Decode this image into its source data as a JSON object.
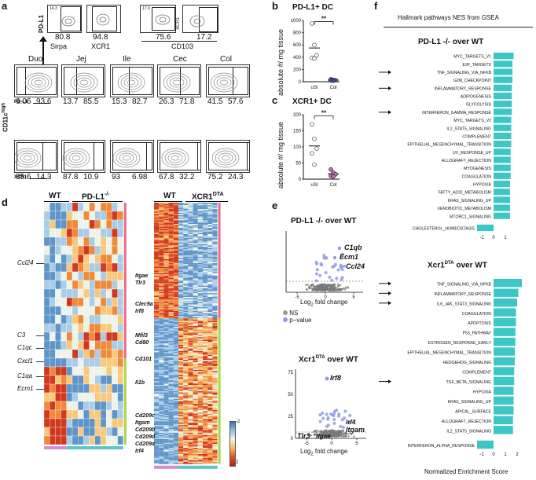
{
  "panel_labels": {
    "a": "a",
    "b": "b",
    "c": "c",
    "d": "d",
    "e": "e",
    "f": "f"
  },
  "panel_a": {
    "top_gates": [
      {
        "ylabel": "PD-L1",
        "xlabel": "Sirpa",
        "small": "14.3",
        "value": "80.8"
      },
      {
        "xlabel": "XCR1",
        "value": "94.8"
      },
      {
        "small": "17.9",
        "value": "75.6"
      },
      {
        "ylabel": "XCR1",
        "value": "17.2"
      }
    ],
    "cd103_label": "CD103",
    "cd11c_label": "CD11c",
    "cd11c_sup": "high",
    "pdl1_axis": "PD-L1",
    "xcr1_axis": "XCR1",
    "tissues": [
      "Duo",
      "Jej",
      "Ile",
      "Cec",
      "Col"
    ],
    "row1": [
      [
        "6.06",
        "93.6"
      ],
      [
        "13.7",
        "85.5"
      ],
      [
        "15.3",
        "82.7"
      ],
      [
        "26.3",
        "71.8"
      ],
      [
        "41.5",
        "57.6"
      ]
    ],
    "row2": [
      [
        "85.6",
        "14.3"
      ],
      [
        "87.8",
        "10.9"
      ],
      [
        "93",
        "6.98"
      ],
      [
        "67.8",
        "32.2"
      ],
      [
        "75.2",
        "24.3"
      ]
    ]
  },
  "panel_b": {
    "title": "PD-L1+ DC",
    "ylabel": "absolute #/ mg tissue",
    "sig": "**",
    "chart_data": {
      "type": "scatter",
      "title": "PD-L1+ DC",
      "ylabel": "absolute #/ mg tissue",
      "categories": [
        "uSI",
        "Col"
      ],
      "ylim": [
        0,
        1000
      ],
      "yticks": [
        "0",
        "200",
        "400",
        "600",
        "800",
        "1000"
      ],
      "series": [
        {
          "name": "uSI",
          "values": [
            950,
            600,
            430,
            390,
            380
          ]
        },
        {
          "name": "Col",
          "values": [
            40,
            30,
            25,
            20,
            15
          ]
        }
      ]
    }
  },
  "panel_c": {
    "title": "XCR1+ DC",
    "ylabel": "absolute #/ mg tissue",
    "sig": "**",
    "chart_data": {
      "type": "scatter",
      "title": "XCR1+ DC",
      "ylabel": "absolute #/ mg tissue",
      "categories": [
        "uSI",
        "Col"
      ],
      "ylim": [
        0,
        200
      ],
      "yticks": [
        "0",
        "50",
        "100",
        "150",
        "200"
      ],
      "series": [
        {
          "name": "uSI",
          "values": [
            170,
            125,
            95,
            80,
            45
          ]
        },
        {
          "name": "Col",
          "values": [
            30,
            20,
            15,
            10,
            8
          ]
        }
      ]
    }
  },
  "panel_d": {
    "left": {
      "wt": "WT",
      "ko": "PD-L1",
      "ko_sup": "-/-",
      "genes": [
        "Ccl24",
        "C3",
        "C1qc",
        "Cxcl1",
        "C1qa",
        "Ecm1"
      ]
    },
    "right": {
      "wt": "WT",
      "ko": "XCR1",
      "ko_sup": "DTA",
      "genes": [
        "Itgae",
        "Tlr3",
        "Clec9a",
        "Irf8",
        "Mfil3",
        "Cd80",
        "Cd101",
        "Il1b",
        "Cd209c",
        "Itgam",
        "Cd209b",
        "Cd209d",
        "Cd209a",
        "Irf4"
      ]
    },
    "legend": {
      "max": "2",
      "min": "-2"
    }
  },
  "panel_e": {
    "top_title": "PD-L1 -/- over WT",
    "top_genes": [
      "C1qb",
      "Ecm1",
      "Ccl24"
    ],
    "xlabel": "Log",
    "xlabel_sub": "2",
    "xlabel_rest": " fold change",
    "xticks": [
      "-5",
      "0",
      "5"
    ],
    "legend": [
      "NS",
      "p−value"
    ],
    "bottom_title": "Xcr1",
    "bottom_title_sup": "DTA",
    "bottom_title_rest": " over WT",
    "bottom_genes": [
      "Irf8",
      "Irf4",
      "Itgam",
      "Tlr3",
      "Itgae"
    ],
    "yticks_bottom": [
      "0",
      "25",
      "50",
      "75"
    ]
  },
  "panel_f": {
    "header": "Hallmark pathways NES from GSEA",
    "top_title": "PD-L1 -/- over WT",
    "bottom_title": "Xcr1",
    "bottom_title_sup": "DTA",
    "bottom_title_rest": " over WT",
    "xlabel": "Normalized Enrichment Score",
    "top_ticks": [
      "-1",
      "0",
      "1"
    ],
    "bottom_ticks": [
      "-1",
      "0",
      "1",
      "2"
    ],
    "accent": "#3cc6c6",
    "chart_data": [
      {
        "type": "bar",
        "title": "PD-L1 -/- over WT",
        "categories": [
          "MYC_TARGETS_V1",
          "E2F_TARGETS",
          "TNF_SIGNALING_VIA_NFKB",
          "G2M_CHECKPOINT",
          "INFLAMMATORY_RESPONSE",
          "ADIPOGENESIS",
          "GLYCOLYSIS",
          "INTERFERON_GAMMA_RESPONSE",
          "MYC_TARGETS_V2",
          "IL2_STAT5_SIGNALING",
          "COMPLEMENT",
          "EPITHELIAL_MESENCHYMAL_TRANSITION",
          "UV_RESPONSE_UP",
          "ALLOGRAFT_REJECTION",
          "MYOGENESIS",
          "COAGULATION",
          "HYPOXIA",
          "FATTY_ACID_METABOLISM",
          "KRAS_SIGNALING_UP",
          "XENOBIOTIC_METABOLISM",
          "MTORC1_SIGNALING",
          "CHOLESTEROL_HOMEOSTASIS"
        ],
        "values": [
          1.7,
          1.6,
          1.6,
          1.6,
          1.55,
          1.55,
          1.55,
          1.55,
          1.5,
          1.5,
          1.5,
          1.5,
          1.45,
          1.45,
          1.45,
          1.45,
          1.4,
          1.4,
          1.4,
          1.4,
          1.4,
          -1.4
        ],
        "arrows": [
          "TNF_SIGNALING_VIA_NFKB",
          "INFLAMMATORY_RESPONSE",
          "INTERFERON_GAMMA_RESPONSE"
        ]
      },
      {
        "type": "bar",
        "title": "Xcr1 DTA over WT",
        "categories": [
          "TNF_SIGNALING_VIA_NFKB",
          "INFLAMMATORY_RESPONSE",
          "IL6_JAK_STAT3_SIGNALING",
          "COAGULATION",
          "APOPTOSIS",
          "P53_PATHWAY",
          "ESTROGEN_RESPONSE_EARLY",
          "EPITHELIAL_MESENCHYMAL_TRANSITION",
          "HEDGEHOG_SIGNALING",
          "COMPLEMENT",
          "TGF_BETA_SIGNALING",
          "HYPOXIA",
          "KRAS_SIGNALING_UP",
          "APICAL_SURFACE",
          "ALLOGRAFT_REJECTION",
          "IL2_STAT5_SIGNALING",
          "INTERFERON_ALPHA_RESPONSE"
        ],
        "values": [
          2.4,
          2.1,
          2.0,
          1.9,
          1.9,
          1.85,
          1.85,
          1.8,
          1.8,
          1.75,
          1.75,
          1.7,
          1.7,
          1.7,
          1.65,
          1.65,
          -1.4
        ],
        "arrows": [
          "TNF_SIGNALING_VIA_NFKB",
          "INFLAMMATORY_RESPONSE",
          "IL6_JAK_STAT3_SIGNALING",
          "TGF_BETA_SIGNALING"
        ]
      }
    ]
  }
}
